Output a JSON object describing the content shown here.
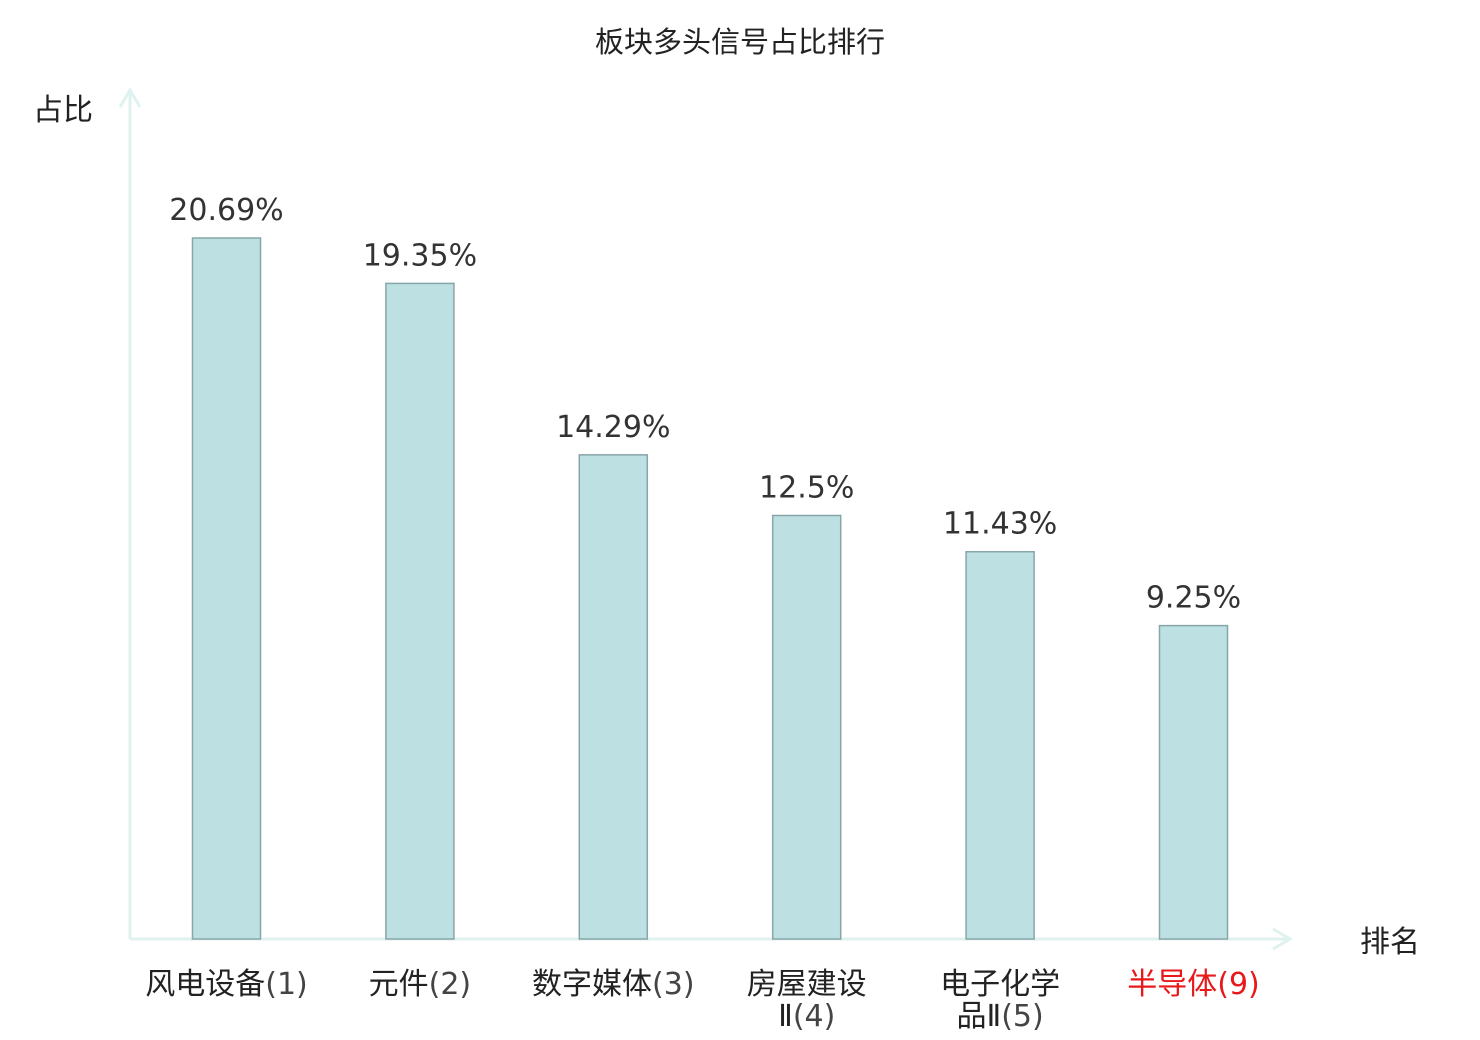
{
  "chart_data": {
    "type": "bar",
    "title": "板块多头信号占比排行",
    "ylabel": "占比",
    "xlabel": "排名",
    "categories": [
      {
        "name": "风电设备",
        "rank": "(1)",
        "lines": [
          "风电设备(1)"
        ],
        "highlight": false
      },
      {
        "name": "元件",
        "rank": "(2)",
        "lines": [
          "元件(2)"
        ],
        "highlight": false
      },
      {
        "name": "数字媒体",
        "rank": "(3)",
        "lines": [
          "数字媒体(3)"
        ],
        "highlight": false
      },
      {
        "name": "房屋建设Ⅱ",
        "rank": "(4)",
        "lines": [
          "房屋建设",
          "Ⅱ(4)"
        ],
        "highlight": false
      },
      {
        "name": "电子化学品Ⅱ",
        "rank": "(5)",
        "lines": [
          "电子化学",
          "品Ⅱ(5)"
        ],
        "highlight": false
      },
      {
        "name": "半导体",
        "rank": "(9)",
        "lines": [
          "半导体(9)"
        ],
        "highlight": true
      }
    ],
    "values": [
      20.69,
      19.35,
      14.29,
      12.5,
      11.43,
      9.25
    ],
    "value_labels": [
      "20.69%",
      "19.35%",
      "14.29%",
      "12.5%",
      "11.43%",
      "9.25%"
    ],
    "ylim": [
      0,
      25
    ],
    "grid": false,
    "legend": "none",
    "colors": {
      "bar_fill": "#bde0e3",
      "bar_stroke": "#88a5a8",
      "axis": "#dff2ef",
      "highlight_text": "#e8191b",
      "text": "#222222"
    }
  }
}
